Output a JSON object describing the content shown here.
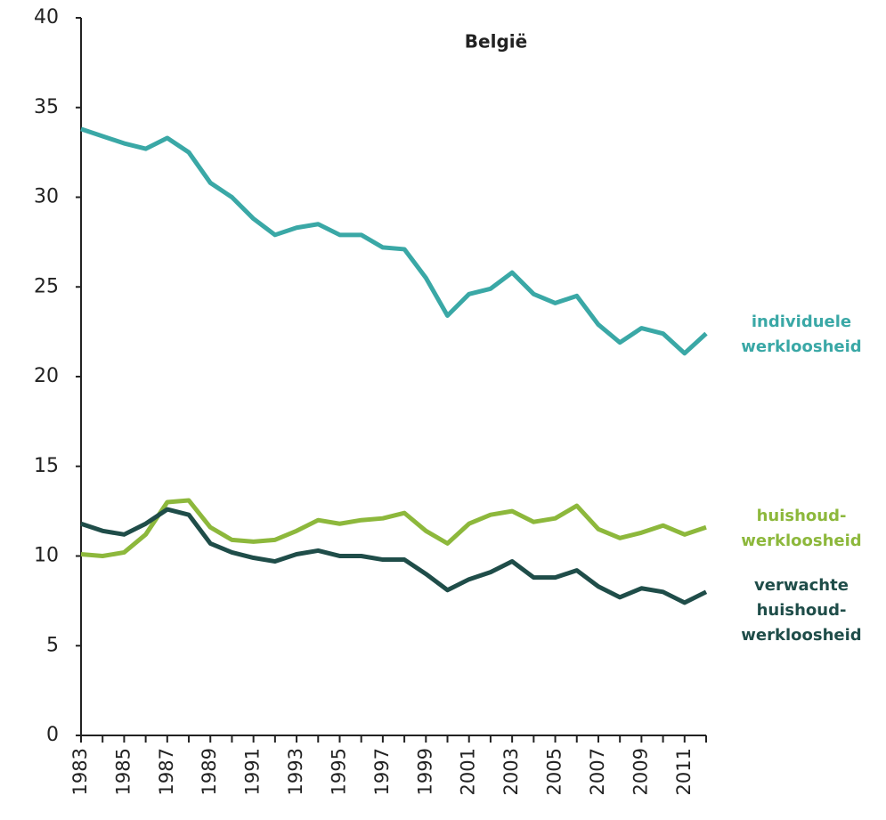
{
  "chart_data": {
    "type": "line",
    "title": "België",
    "x": [
      1983,
      1984,
      1985,
      1986,
      1987,
      1988,
      1989,
      1990,
      1991,
      1992,
      1993,
      1994,
      1995,
      1996,
      1997,
      1998,
      1999,
      2000,
      2001,
      2002,
      2003,
      2004,
      2005,
      2006,
      2007,
      2008,
      2009,
      2010,
      2011,
      2012
    ],
    "xlim": [
      1983,
      2012
    ],
    "xticks": [
      1983,
      1985,
      1987,
      1989,
      1991,
      1993,
      1995,
      1997,
      1999,
      2001,
      2003,
      2005,
      2007,
      2009,
      2011
    ],
    "ylim": [
      0,
      40
    ],
    "yticks": [
      0,
      5,
      10,
      15,
      20,
      25,
      30,
      35,
      40
    ],
    "grid": false,
    "series": [
      {
        "name": "individuele\nwerkloosheid",
        "color": "#3aa8a6",
        "values": [
          33.8,
          33.4,
          33.0,
          32.7,
          33.3,
          32.5,
          30.8,
          30.0,
          28.8,
          27.9,
          28.3,
          28.5,
          27.9,
          27.9,
          27.2,
          27.1,
          25.5,
          23.4,
          24.6,
          24.9,
          25.8,
          24.6,
          24.1,
          24.5,
          22.9,
          21.9,
          22.7,
          22.4,
          21.3,
          22.4
        ]
      },
      {
        "name": "huishoud-\nwerkloosheid",
        "color": "#8db83c",
        "values": [
          10.1,
          10.0,
          10.2,
          11.2,
          13.0,
          13.1,
          11.6,
          10.9,
          10.8,
          10.9,
          11.4,
          12.0,
          11.8,
          12.0,
          12.1,
          12.4,
          11.4,
          10.7,
          11.8,
          12.3,
          12.5,
          11.9,
          12.1,
          12.8,
          11.5,
          11.0,
          11.3,
          11.7,
          11.2,
          11.6
        ]
      },
      {
        "name": "verwachte\nhuishoud-\nwerkloosheid",
        "color": "#1f4d49",
        "values": [
          11.8,
          11.4,
          11.2,
          11.8,
          12.6,
          12.3,
          10.7,
          10.2,
          9.9,
          9.7,
          10.1,
          10.3,
          10.0,
          10.0,
          9.8,
          9.8,
          9.0,
          8.1,
          8.7,
          9.1,
          9.7,
          8.8,
          8.8,
          9.2,
          8.3,
          7.7,
          8.2,
          8.0,
          7.4,
          8.0
        ]
      }
    ]
  }
}
